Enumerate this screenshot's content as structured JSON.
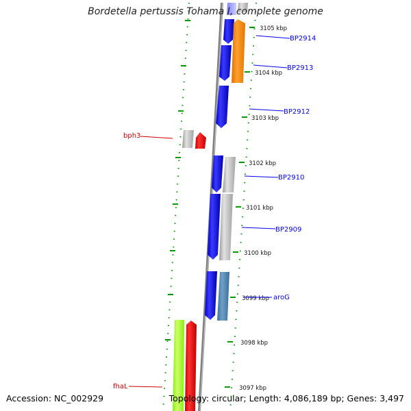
{
  "map": {
    "title": "Bordetella pertussis Tohama I, complete genome",
    "accession": "Accession: NC_002929",
    "topology": "Topology: circular; Length: 4,086,189 bp; Genes: 3,497",
    "kbp_labels": [
      "3105 kbp",
      "3104 kbp",
      "3103 kbp",
      "3102 kbp",
      "3101 kbp",
      "3100 kbp",
      "3099 kbp",
      "3098 kbp",
      "3097 kbp"
    ],
    "gene_labels": {
      "bp2914": "BP2914",
      "bp2913": "BP2913",
      "bp2912": "BP2912",
      "bp2910": "BP2910",
      "bp2909": "BP2909",
      "arog": "aroG",
      "bph3": "bph3",
      "fhal": "fhaL"
    },
    "colors": {
      "forward_gene": "#0000ee",
      "reverse_gene_label": "#cc0000",
      "backbone": "#808080",
      "ticks": "#009900",
      "orange_gene": "#ff8c00",
      "steel_gene": "#4682b4",
      "lime_gene": "#99ff22"
    }
  }
}
